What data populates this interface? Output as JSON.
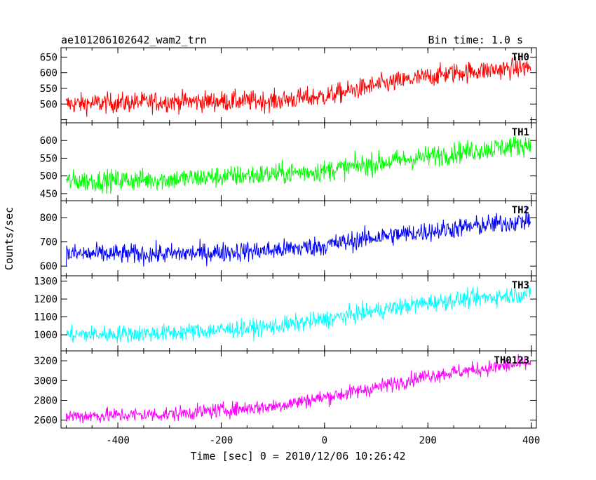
{
  "chart_data": {
    "type": "line",
    "title_left": "ae101206102642_wam2_trn",
    "title_right": "Bin time: 1.0 s",
    "xlabel": "Time [sec] 0 = 2010/12/06 10:26:42",
    "ylabel": "Counts/sec",
    "xlim": [
      -510,
      410
    ],
    "x_ticks": [
      -400,
      -200,
      0,
      200,
      400
    ],
    "x_range": [
      -500,
      399
    ],
    "bin_time_s": 1.0,
    "grid": false,
    "panels": [
      {
        "name": "TH0",
        "color": "#ff0000",
        "ylim": [
          440,
          680
        ],
        "y_ticks": [
          500,
          550,
          600,
          650
        ],
        "y_tick_labels": [
          "500",
          "550",
          "600",
          "650"
        ],
        "y_ticks_unlabeled": [
          450
        ],
        "anchors": {
          "x": [
            -500,
            -300,
            -100,
            0,
            100,
            250,
            399
          ],
          "y": [
            500,
            508,
            510,
            525,
            560,
            600,
            618
          ]
        },
        "noise": 30
      },
      {
        "name": "TH1",
        "color": "#00ff00",
        "ylim": [
          430,
          650
        ],
        "y_ticks": [
          450,
          500,
          550,
          600
        ],
        "y_tick_labels": [
          "450",
          "500",
          "550",
          "600"
        ],
        "y_ticks_unlabeled": [
          650
        ],
        "anchors": {
          "x": [
            -500,
            -300,
            -100,
            0,
            100,
            250,
            399
          ],
          "y": [
            485,
            490,
            505,
            515,
            535,
            565,
            590
          ]
        },
        "noise": 28
      },
      {
        "name": "TH2",
        "color": "#0000ff",
        "ylim": [
          560,
          870
        ],
        "y_ticks": [
          600,
          700,
          800
        ],
        "y_tick_labels": [
          "600",
          "700",
          "800"
        ],
        "y_ticks_unlabeled": [],
        "anchors": {
          "x": [
            -500,
            -300,
            -100,
            0,
            100,
            250,
            399
          ],
          "y": [
            650,
            650,
            665,
            685,
            720,
            755,
            790
          ]
        },
        "noise": 38
      },
      {
        "name": "TH3",
        "color": "#00ffff",
        "ylim": [
          910,
          1330
        ],
        "y_ticks": [
          1000,
          1100,
          1200,
          1300
        ],
        "y_tick_labels": [
          "1000",
          "1100",
          "1200",
          "1300"
        ],
        "y_ticks_unlabeled": [],
        "anchors": {
          "x": [
            -500,
            -300,
            -100,
            0,
            100,
            200,
            399
          ],
          "y": [
            1000,
            1010,
            1045,
            1085,
            1135,
            1180,
            1230
          ]
        },
        "noise": 45
      },
      {
        "name": "TH0123",
        "color": "#ff00ff",
        "ylim": [
          2520,
          3300
        ],
        "y_ticks": [
          2600,
          2800,
          3000,
          3200
        ],
        "y_tick_labels": [
          "2600",
          "2800",
          "3000",
          "3200"
        ],
        "y_ticks_unlabeled": [],
        "anchors": {
          "x": [
            -500,
            -300,
            -100,
            0,
            100,
            200,
            399
          ],
          "y": [
            2640,
            2660,
            2740,
            2830,
            2930,
            3050,
            3180
          ]
        },
        "noise": 70
      }
    ]
  }
}
